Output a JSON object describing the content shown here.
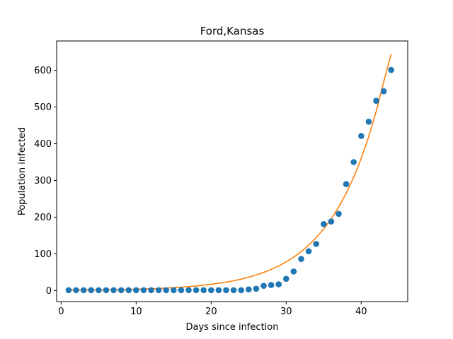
{
  "chart_data": {
    "type": "scatter",
    "title": "Ford,Kansas",
    "xlabel": "Days since infection",
    "ylabel": "Population infected",
    "xlim": [
      -0.6,
      46.2
    ],
    "ylim": [
      -30,
      680
    ],
    "xticks": [
      0,
      10,
      20,
      30,
      40
    ],
    "yticks": [
      0,
      100,
      200,
      300,
      400,
      500,
      600
    ],
    "grid": false,
    "series": [
      {
        "kind": "points",
        "color": "#1f77b4",
        "x": [
          1,
          2,
          3,
          4,
          5,
          6,
          7,
          8,
          9,
          10,
          11,
          12,
          13,
          14,
          15,
          16,
          17,
          18,
          19,
          20,
          21,
          22,
          23,
          24,
          25,
          26,
          27,
          28,
          29,
          30,
          31,
          32,
          33,
          34,
          35,
          36,
          37,
          38,
          39,
          40,
          41,
          42,
          43,
          44
        ],
        "y": [
          1,
          1,
          1,
          1,
          1,
          1,
          1,
          1,
          1,
          1,
          1,
          1,
          1,
          1,
          1,
          1,
          1,
          1,
          1,
          1,
          1,
          1,
          1,
          1,
          3,
          5,
          13,
          15,
          17,
          32,
          52,
          86,
          107,
          127,
          181,
          188,
          209,
          290,
          350,
          421,
          460,
          517,
          543,
          601
        ]
      },
      {
        "kind": "fit-line",
        "color": "#ff7f0e",
        "x": [
          1,
          2,
          3,
          4,
          5,
          6,
          7,
          8,
          9,
          10,
          11,
          12,
          13,
          14,
          15,
          16,
          17,
          18,
          19,
          20,
          21,
          22,
          23,
          24,
          25,
          26,
          27,
          28,
          29,
          30,
          31,
          32,
          33,
          34,
          35,
          36,
          37,
          38,
          39,
          40,
          41,
          42,
          43,
          44
        ],
        "y": [
          0.9,
          1.1,
          1.3,
          1.5,
          1.7,
          2.0,
          2.3,
          2.7,
          3.2,
          3.7,
          4.3,
          5.0,
          5.8,
          6.8,
          7.9,
          9.2,
          10.7,
          12.5,
          14.6,
          17.0,
          19.8,
          23.0,
          26.8,
          31.2,
          36.4,
          42.4,
          49.4,
          57.5,
          67.0,
          78.1,
          91.0,
          106.0,
          123.5,
          143.9,
          167.6,
          195.3,
          227.5,
          265.0,
          308.7,
          359.7,
          419.0,
          488.1,
          568.7,
          645.0
        ]
      }
    ]
  }
}
